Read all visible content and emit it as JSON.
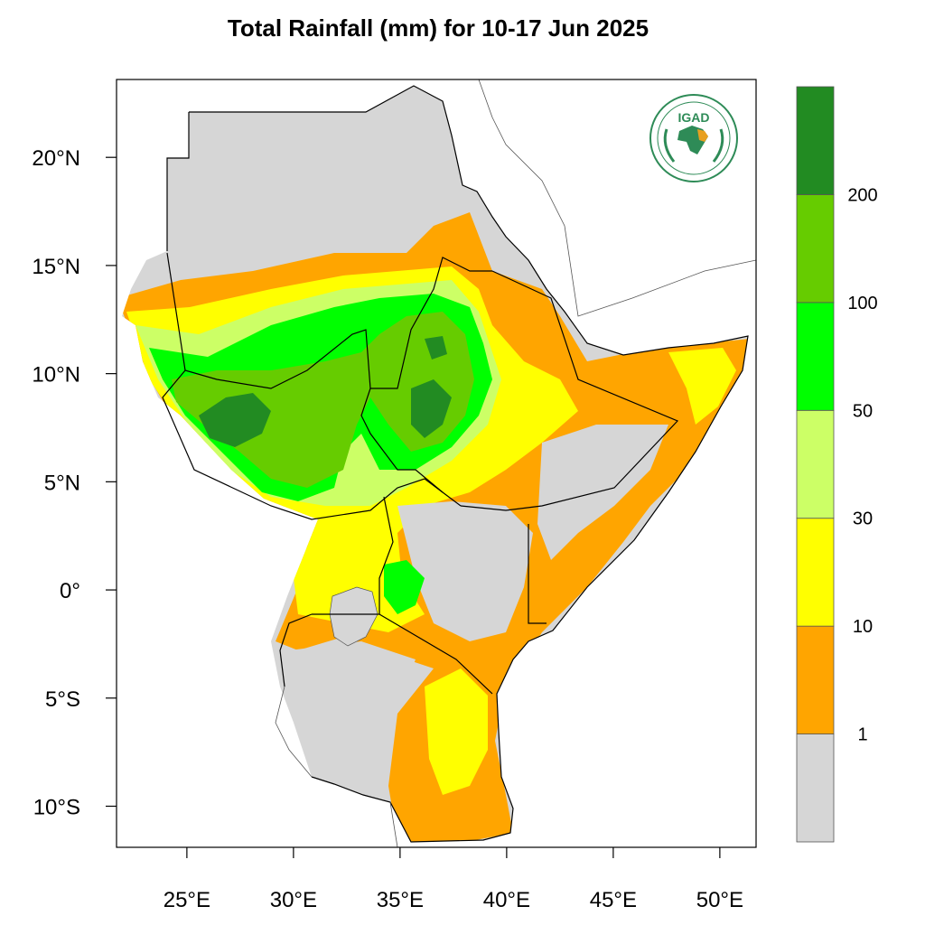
{
  "map": {
    "title": "Total Rainfall (mm) for 10-17 Jun 2025",
    "lon_ticks": [
      "25°E",
      "30°E",
      "35°E",
      "40°E",
      "45°E",
      "50°E"
    ],
    "lat_ticks": [
      "20°N",
      "15°N",
      "10°N",
      "5°N",
      "0°",
      "5°S",
      "10°S"
    ],
    "lon_range": [
      21.7,
      51.7
    ],
    "lat_range": [
      -11.9,
      23.6
    ],
    "colors": {
      "land_no_rain": "#d6d6d6",
      "ocean": "#ffffff",
      "borders": "#000000"
    },
    "legend": {
      "title": "",
      "bins": [
        {
          "color": "#d6d6d6",
          "range": "<1"
        },
        {
          "color": "#ffa500",
          "range": "1-10"
        },
        {
          "color": "#ffff00",
          "range": "10-30"
        },
        {
          "color": "#ccff66",
          "range": "30-50"
        },
        {
          "color": "#00ff00",
          "range": "50-100"
        },
        {
          "color": "#66cc00",
          "range": "100-200"
        },
        {
          "color": "#228b22",
          "range": ">200"
        }
      ],
      "labels": [
        "1",
        "10",
        "30",
        "50",
        "100",
        "200"
      ]
    },
    "logo": {
      "text": "IGAD",
      "ring_top": "INTERGOVERNMENTAL AUTHORITY ON DEVELOPMENT",
      "ring_bottom": "AUTORITÉ INTERGOUVERNEMENTALE POUR LE DÉVELOPPEMENT"
    }
  }
}
